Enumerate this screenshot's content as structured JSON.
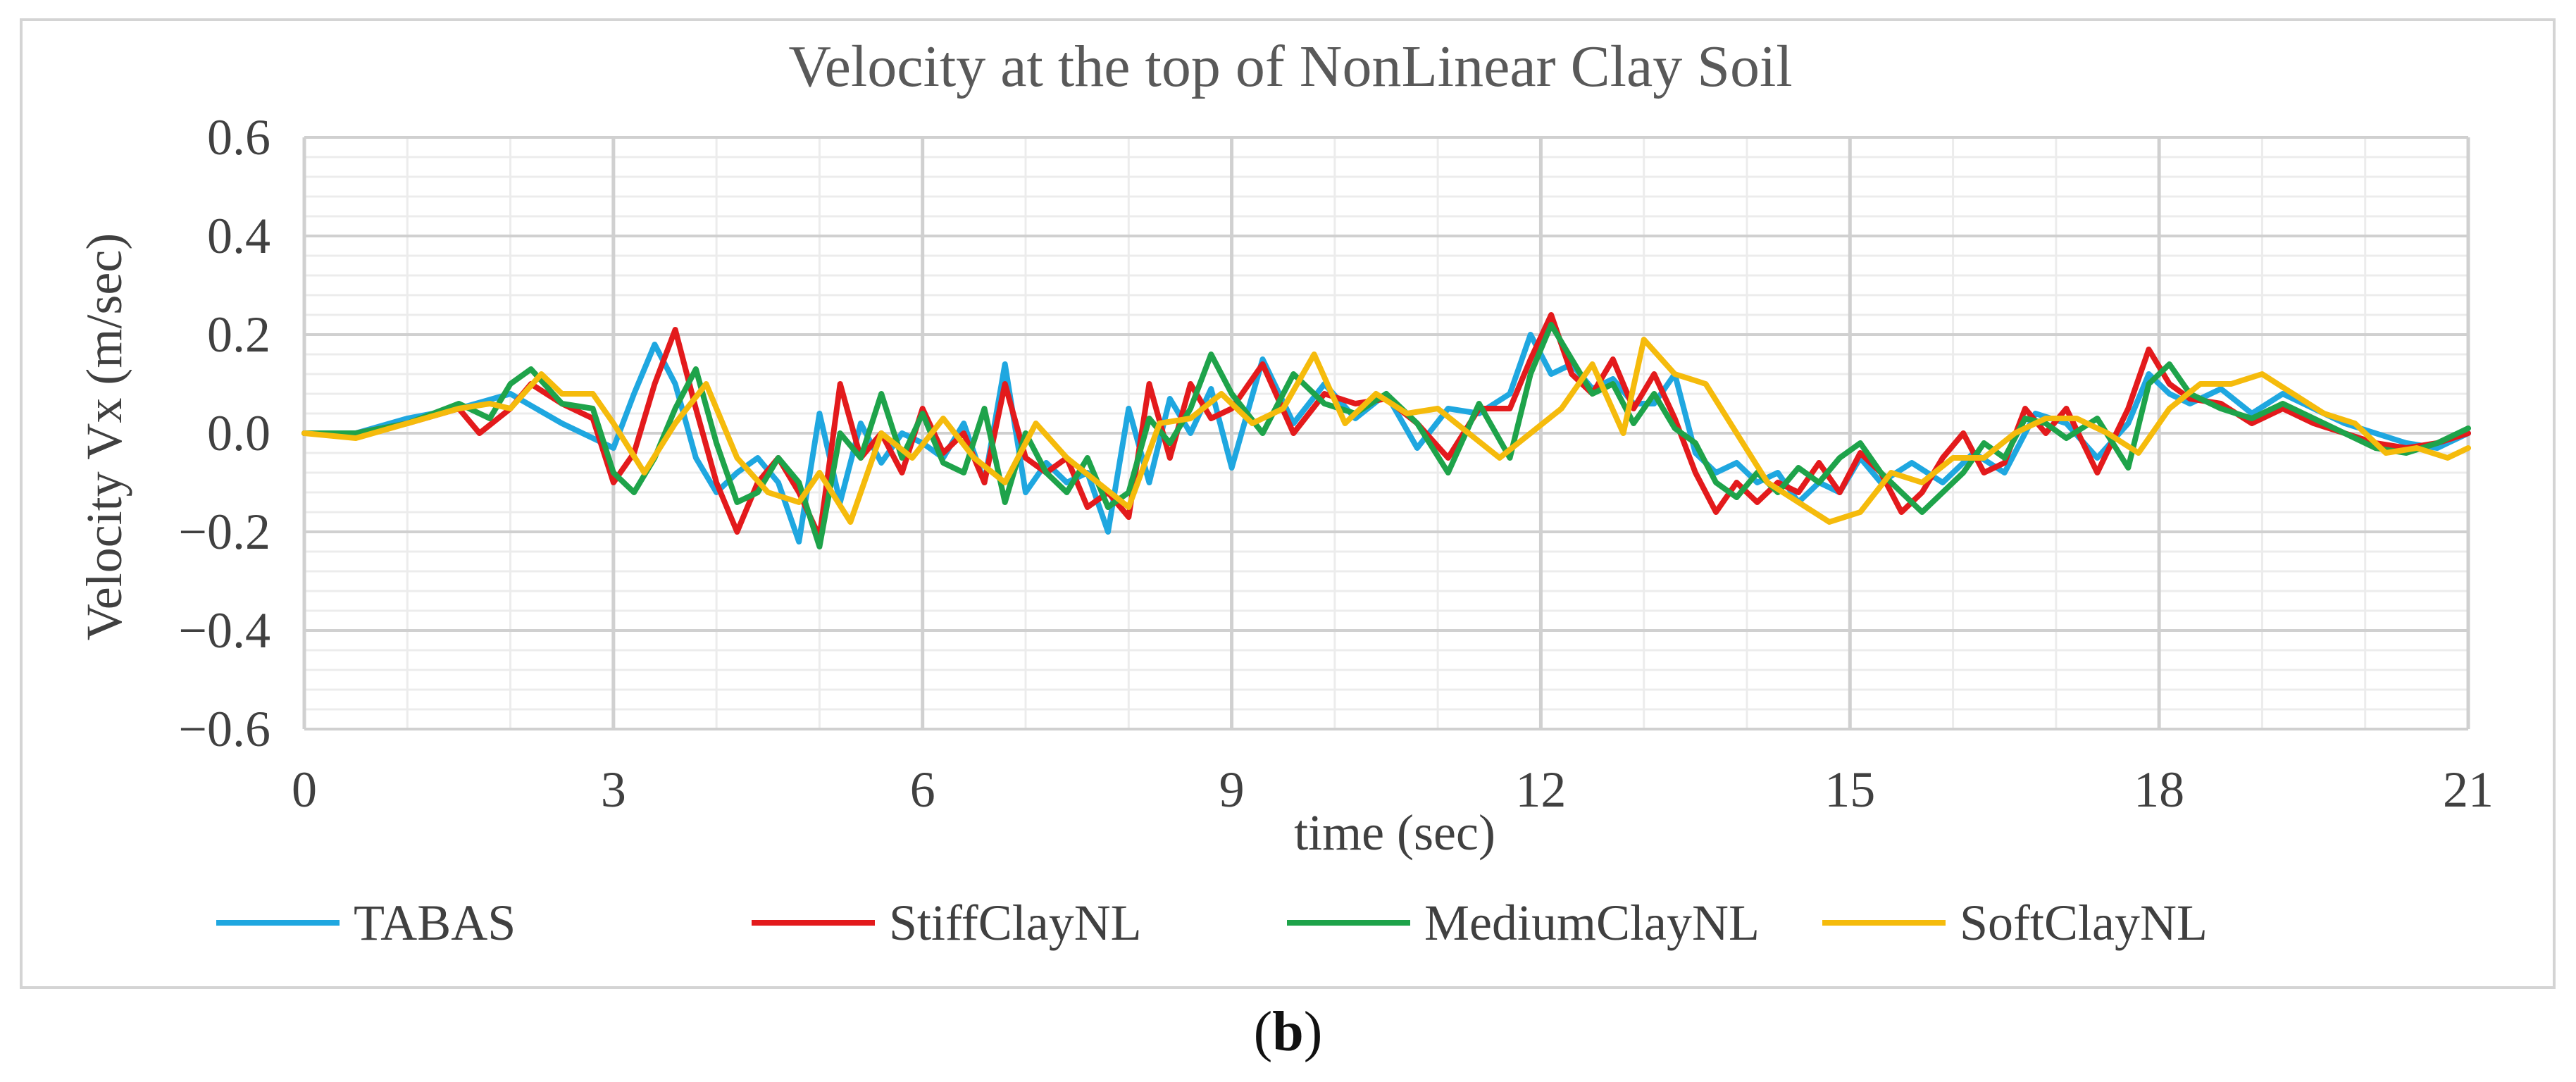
{
  "chart_data": {
    "type": "line",
    "title": "Velocity at the top of NonLinear Clay Soil",
    "xlabel": "time (sec)",
    "ylabel": "Velocity Vx (m/sec)",
    "xlim": [
      0,
      21
    ],
    "ylim": [
      -0.6,
      0.6
    ],
    "x_ticks": [
      "0",
      "3",
      "6",
      "9",
      "12",
      "15",
      "18",
      "21"
    ],
    "y_ticks": [
      "0.6",
      "0.4",
      "0.2",
      "0.0",
      "−0.2",
      "−0.4",
      "−0.6"
    ],
    "grid": true,
    "legend_position": "bottom",
    "series": [
      {
        "name": "TABAS",
        "color": "#1fa7e0",
        "x": [
          0,
          0.5,
          1.0,
          1.5,
          2.0,
          2.5,
          3.0,
          3.2,
          3.4,
          3.6,
          3.8,
          4.0,
          4.2,
          4.4,
          4.6,
          4.8,
          5.0,
          5.2,
          5.4,
          5.6,
          5.8,
          6.0,
          6.2,
          6.4,
          6.6,
          6.8,
          7.0,
          7.2,
          7.4,
          7.6,
          7.8,
          8.0,
          8.2,
          8.4,
          8.6,
          8.8,
          9.0,
          9.3,
          9.6,
          9.9,
          10.2,
          10.5,
          10.8,
          11.1,
          11.4,
          11.7,
          11.9,
          12.1,
          12.3,
          12.5,
          12.7,
          12.9,
          13.1,
          13.3,
          13.5,
          13.7,
          13.9,
          14.1,
          14.3,
          14.5,
          14.7,
          14.9,
          15.1,
          15.3,
          15.6,
          15.9,
          16.2,
          16.5,
          16.8,
          17.1,
          17.4,
          17.7,
          17.9,
          18.1,
          18.3,
          18.6,
          18.9,
          19.2,
          19.5,
          19.8,
          20.1,
          20.4,
          20.7,
          21
        ],
        "values": [
          0,
          0.0,
          0.03,
          0.05,
          0.08,
          0.02,
          -0.03,
          0.08,
          0.18,
          0.1,
          -0.05,
          -0.12,
          -0.08,
          -0.05,
          -0.1,
          -0.22,
          0.04,
          -0.14,
          0.02,
          -0.06,
          0.0,
          -0.02,
          -0.05,
          0.02,
          -0.1,
          0.14,
          -0.12,
          -0.06,
          -0.1,
          -0.08,
          -0.2,
          0.05,
          -0.1,
          0.07,
          0.0,
          0.09,
          -0.07,
          0.15,
          0.02,
          0.1,
          0.03,
          0.08,
          -0.03,
          0.05,
          0.04,
          0.08,
          0.2,
          0.12,
          0.14,
          0.09,
          0.11,
          0.06,
          0.06,
          0.12,
          -0.04,
          -0.08,
          -0.06,
          -0.1,
          -0.08,
          -0.14,
          -0.1,
          -0.12,
          -0.05,
          -0.1,
          -0.06,
          -0.1,
          -0.04,
          -0.08,
          0.04,
          0.02,
          -0.05,
          0.02,
          0.12,
          0.08,
          0.06,
          0.09,
          0.04,
          0.08,
          0.05,
          0.02,
          0.0,
          -0.02,
          -0.03,
          0.0
        ]
      },
      {
        "name": "StiffClayNL",
        "color": "#e31a1c",
        "x": [
          0,
          0.5,
          1.0,
          1.5,
          1.7,
          2.0,
          2.2,
          2.5,
          2.8,
          3.0,
          3.2,
          3.4,
          3.6,
          3.8,
          4.0,
          4.2,
          4.4,
          4.6,
          4.8,
          5.0,
          5.2,
          5.4,
          5.6,
          5.8,
          6.0,
          6.2,
          6.4,
          6.6,
          6.8,
          7.0,
          7.2,
          7.4,
          7.6,
          7.8,
          8.0,
          8.2,
          8.4,
          8.6,
          8.8,
          9.0,
          9.3,
          9.6,
          9.9,
          10.2,
          10.5,
          10.8,
          11.1,
          11.4,
          11.7,
          11.9,
          12.1,
          12.3,
          12.5,
          12.7,
          12.9,
          13.1,
          13.3,
          13.5,
          13.7,
          13.9,
          14.1,
          14.3,
          14.5,
          14.7,
          14.9,
          15.1,
          15.3,
          15.5,
          15.7,
          15.9,
          16.1,
          16.3,
          16.5,
          16.7,
          16.9,
          17.1,
          17.4,
          17.7,
          17.9,
          18.1,
          18.3,
          18.6,
          18.9,
          19.2,
          19.5,
          19.8,
          20.1,
          20.4,
          20.7,
          21
        ],
        "values": [
          0,
          0.0,
          0.02,
          0.05,
          0.0,
          0.05,
          0.1,
          0.06,
          0.03,
          -0.1,
          -0.04,
          0.1,
          0.21,
          0.05,
          -0.1,
          -0.2,
          -0.1,
          -0.05,
          -0.12,
          -0.21,
          0.1,
          -0.05,
          0.0,
          -0.08,
          0.05,
          -0.04,
          0.0,
          -0.1,
          0.1,
          -0.05,
          -0.08,
          -0.05,
          -0.15,
          -0.12,
          -0.17,
          0.1,
          -0.05,
          0.1,
          0.03,
          0.05,
          0.14,
          0.0,
          0.08,
          0.06,
          0.07,
          0.02,
          -0.05,
          0.05,
          0.05,
          0.15,
          0.24,
          0.12,
          0.08,
          0.15,
          0.05,
          0.12,
          0.03,
          -0.08,
          -0.16,
          -0.1,
          -0.14,
          -0.1,
          -0.12,
          -0.06,
          -0.12,
          -0.04,
          -0.08,
          -0.16,
          -0.12,
          -0.05,
          0.0,
          -0.08,
          -0.06,
          0.05,
          0.0,
          0.05,
          -0.08,
          0.05,
          0.17,
          0.1,
          0.07,
          0.06,
          0.02,
          0.05,
          0.02,
          0.0,
          -0.02,
          -0.03,
          -0.02,
          0.0
        ]
      },
      {
        "name": "MediumClayNL",
        "color": "#1ea34a",
        "x": [
          0,
          0.5,
          1.0,
          1.5,
          1.8,
          2.0,
          2.2,
          2.5,
          2.8,
          3.0,
          3.2,
          3.4,
          3.6,
          3.8,
          4.0,
          4.2,
          4.4,
          4.6,
          4.8,
          5.0,
          5.2,
          5.4,
          5.6,
          5.8,
          6.0,
          6.2,
          6.4,
          6.6,
          6.8,
          7.0,
          7.2,
          7.4,
          7.6,
          7.8,
          8.0,
          8.2,
          8.4,
          8.6,
          8.8,
          9.0,
          9.3,
          9.6,
          9.9,
          10.2,
          10.5,
          10.8,
          11.1,
          11.4,
          11.7,
          11.9,
          12.1,
          12.3,
          12.5,
          12.7,
          12.9,
          13.1,
          13.3,
          13.5,
          13.7,
          13.9,
          14.1,
          14.3,
          14.5,
          14.7,
          14.9,
          15.1,
          15.3,
          15.5,
          15.7,
          15.9,
          16.1,
          16.3,
          16.5,
          16.7,
          16.9,
          17.1,
          17.4,
          17.7,
          17.9,
          18.1,
          18.3,
          18.6,
          18.9,
          19.2,
          19.5,
          19.8,
          20.1,
          20.4,
          20.7,
          21
        ],
        "values": [
          0,
          0.0,
          0.02,
          0.06,
          0.03,
          0.1,
          0.13,
          0.06,
          0.05,
          -0.08,
          -0.12,
          -0.05,
          0.05,
          0.13,
          -0.02,
          -0.14,
          -0.12,
          -0.05,
          -0.1,
          -0.23,
          0.0,
          -0.05,
          0.08,
          -0.05,
          0.04,
          -0.06,
          -0.08,
          0.05,
          -0.14,
          0.0,
          -0.08,
          -0.12,
          -0.05,
          -0.15,
          -0.12,
          0.03,
          -0.02,
          0.05,
          0.16,
          0.08,
          0.0,
          0.12,
          0.06,
          0.04,
          0.08,
          0.02,
          -0.08,
          0.06,
          -0.05,
          0.12,
          0.22,
          0.15,
          0.08,
          0.1,
          0.02,
          0.08,
          0.01,
          -0.02,
          -0.1,
          -0.13,
          -0.08,
          -0.12,
          -0.07,
          -0.1,
          -0.05,
          -0.02,
          -0.08,
          -0.12,
          -0.16,
          -0.12,
          -0.08,
          -0.02,
          -0.05,
          0.03,
          0.02,
          -0.01,
          0.03,
          -0.07,
          0.1,
          0.14,
          0.08,
          0.05,
          0.03,
          0.06,
          0.03,
          0.0,
          -0.03,
          -0.04,
          -0.02,
          0.01
        ]
      },
      {
        "name": "SoftClayNL",
        "color": "#f5bb0c",
        "x": [
          0,
          0.5,
          1.0,
          1.5,
          1.8,
          2.0,
          2.3,
          2.5,
          2.8,
          3.0,
          3.3,
          3.6,
          3.9,
          4.2,
          4.5,
          4.8,
          5.0,
          5.3,
          5.6,
          5.9,
          6.2,
          6.5,
          6.8,
          7.1,
          7.4,
          7.7,
          8.0,
          8.3,
          8.6,
          8.9,
          9.2,
          9.5,
          9.8,
          10.1,
          10.4,
          10.7,
          11.0,
          11.3,
          11.6,
          11.9,
          12.2,
          12.5,
          12.8,
          13.0,
          13.3,
          13.6,
          13.9,
          14.2,
          14.5,
          14.8,
          15.1,
          15.4,
          15.7,
          16.0,
          16.3,
          16.6,
          16.9,
          17.2,
          17.5,
          17.8,
          18.1,
          18.4,
          18.7,
          19.0,
          19.3,
          19.6,
          19.9,
          20.2,
          20.5,
          20.8,
          21
        ],
        "values": [
          0,
          -0.01,
          0.02,
          0.05,
          0.06,
          0.05,
          0.12,
          0.08,
          0.08,
          0.02,
          -0.08,
          0.02,
          0.1,
          -0.05,
          -0.12,
          -0.14,
          -0.08,
          -0.18,
          0.0,
          -0.05,
          0.03,
          -0.05,
          -0.1,
          0.02,
          -0.05,
          -0.1,
          -0.15,
          0.02,
          0.03,
          0.08,
          0.02,
          0.05,
          0.16,
          0.02,
          0.08,
          0.04,
          0.05,
          0.0,
          -0.05,
          0.0,
          0.05,
          0.14,
          0.0,
          0.19,
          0.12,
          0.1,
          0.0,
          -0.1,
          -0.14,
          -0.18,
          -0.16,
          -0.08,
          -0.1,
          -0.05,
          -0.05,
          0.0,
          0.03,
          0.03,
          0.0,
          -0.04,
          0.05,
          0.1,
          0.1,
          0.12,
          0.08,
          0.04,
          0.02,
          -0.04,
          -0.03,
          -0.05,
          -0.03
        ]
      }
    ]
  },
  "panel_label": {
    "open": "(",
    "letter": "b",
    "close": ")"
  }
}
